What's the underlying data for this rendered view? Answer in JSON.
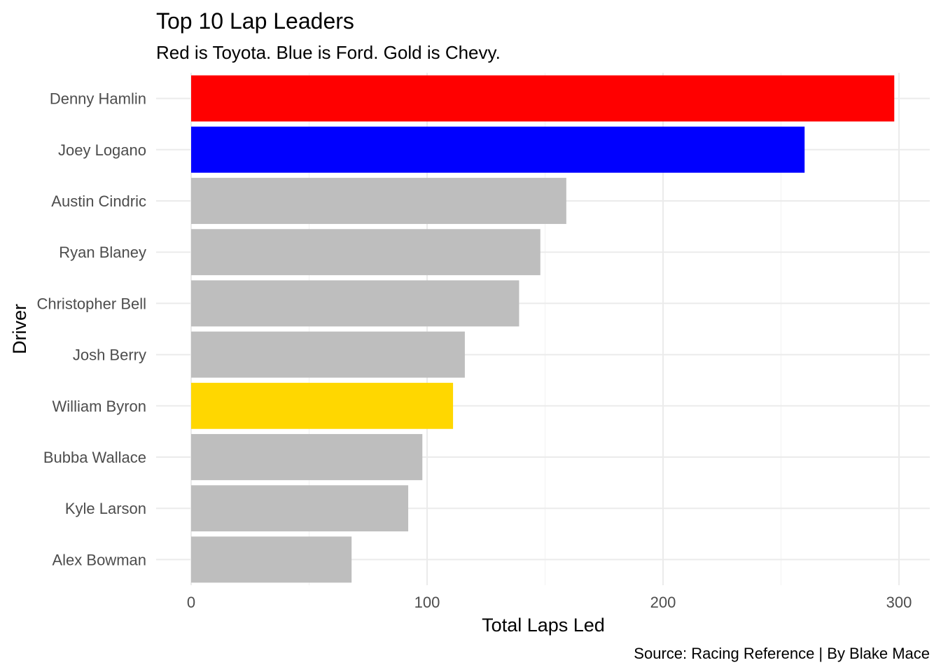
{
  "chart_data": {
    "type": "bar",
    "orientation": "horizontal",
    "title": "Top 10 Lap Leaders",
    "subtitle": "Red is Toyota. Blue is Ford. Gold is Chevy.",
    "xlabel": "Total Laps Led",
    "ylabel": "Driver",
    "caption": "Source: Racing Reference | By Blake Mace",
    "categories": [
      "Denny Hamlin",
      "Joey Logano",
      "Austin Cindric",
      "Ryan Blaney",
      "Christopher Bell",
      "Josh Berry",
      "William Byron",
      "Bubba Wallace",
      "Kyle Larson",
      "Alex Bowman"
    ],
    "values": [
      298,
      260,
      159,
      148,
      139,
      116,
      111,
      98,
      92,
      68
    ],
    "bar_colors": [
      "#ff0000",
      "#0000ff",
      "#bebebe",
      "#bebebe",
      "#bebebe",
      "#bebebe",
      "#ffd700",
      "#bebebe",
      "#bebebe",
      "#bebebe"
    ],
    "xlim": [
      0,
      310
    ],
    "xticks": [
      0,
      100,
      200,
      300
    ],
    "grid": true,
    "legend": "none"
  }
}
